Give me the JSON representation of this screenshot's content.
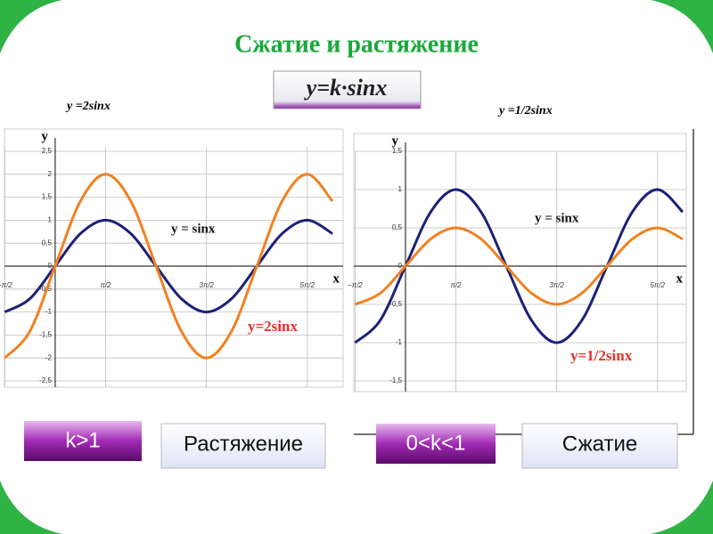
{
  "title": "Сжатие и растяжение",
  "formula": "y=k·sinx",
  "boxes": [
    "k>1",
    "Растяжение",
    "0<k<1",
    "Сжатие"
  ],
  "chart_data": [
    {
      "type": "line",
      "title": "y =2sinx",
      "xlabel": "x",
      "ylabel": "y",
      "grid": true,
      "x": [
        -1.571,
        -0.785,
        0,
        0.785,
        1.571,
        2.356,
        3.142,
        3.927,
        4.712,
        5.498,
        6.283,
        7.069,
        7.854,
        8.639
      ],
      "xlim": [
        -1.58,
        8.97
      ],
      "ylim": [
        -2.5,
        2.5
      ],
      "xticks": [
        {
          "value": -1.571,
          "label": "−π/2"
        },
        {
          "value": 1.571,
          "label": "π/2"
        },
        {
          "value": 4.712,
          "label": "3π/2"
        },
        {
          "value": 7.854,
          "label": "5π/2"
        }
      ],
      "yticks": [
        {
          "value": 2.5,
          "label": "2,5"
        },
        2,
        {
          "value": 1.5,
          "label": "1,5"
        },
        1,
        {
          "value": 0.5,
          "label": "0,5"
        },
        0,
        {
          "value": -0.5,
          "label": "-0,5"
        },
        -1,
        {
          "value": -1.5,
          "label": "-1,5"
        },
        -2,
        {
          "value": -2.5,
          "label": "-2,5"
        }
      ],
      "series": [
        {
          "name": "y = sinx",
          "color": "#1c2177",
          "values": [
            -1,
            -0.707,
            0,
            0.707,
            1,
            0.707,
            0,
            -0.707,
            -1,
            -0.707,
            0,
            0.707,
            1,
            0.707
          ]
        },
        {
          "name": "y=2sinx",
          "color": "#f08122",
          "values": [
            -2,
            -1.414,
            0,
            1.414,
            2,
            1.414,
            0,
            -1.414,
            -2,
            -1.414,
            0,
            1.414,
            2,
            1.414
          ]
        }
      ]
    },
    {
      "type": "line",
      "title": "y =1/2sinx",
      "xlabel": "x",
      "ylabel": "y",
      "grid": true,
      "x": [
        -1.571,
        -0.785,
        0,
        0.785,
        1.571,
        2.356,
        3.142,
        3.927,
        4.712,
        5.498,
        6.283,
        7.069,
        7.854,
        8.639
      ],
      "xlim": [
        -1.61,
        8.75
      ],
      "ylim": [
        -1.5,
        1.5
      ],
      "xticks": [
        {
          "value": -1.571,
          "label": "−π/2"
        },
        {
          "value": 1.571,
          "label": "π/2"
        },
        {
          "value": 4.712,
          "label": "3π/2"
        },
        {
          "value": 7.854,
          "label": "5π/2"
        }
      ],
      "yticks": [
        {
          "value": 1.5,
          "label": "1,5"
        },
        1,
        {
          "value": 0.5,
          "label": "0,5"
        },
        0,
        {
          "value": -0.5,
          "label": "-0,5"
        },
        -1,
        {
          "value": -1.5,
          "label": "-1,5"
        }
      ],
      "series": [
        {
          "name": "y = sinx",
          "color": "#1c2177",
          "values": [
            -1,
            -0.707,
            0,
            0.707,
            1,
            0.707,
            0,
            -0.707,
            -1,
            -0.707,
            0,
            0.707,
            1,
            0.707
          ]
        },
        {
          "name": "y=1/2sinx",
          "color": "#f08122",
          "values": [
            -0.5,
            -0.354,
            0,
            0.354,
            0.5,
            0.354,
            0,
            -0.354,
            -0.5,
            -0.354,
            0,
            0.354,
            0.5,
            0.354
          ]
        }
      ]
    }
  ]
}
